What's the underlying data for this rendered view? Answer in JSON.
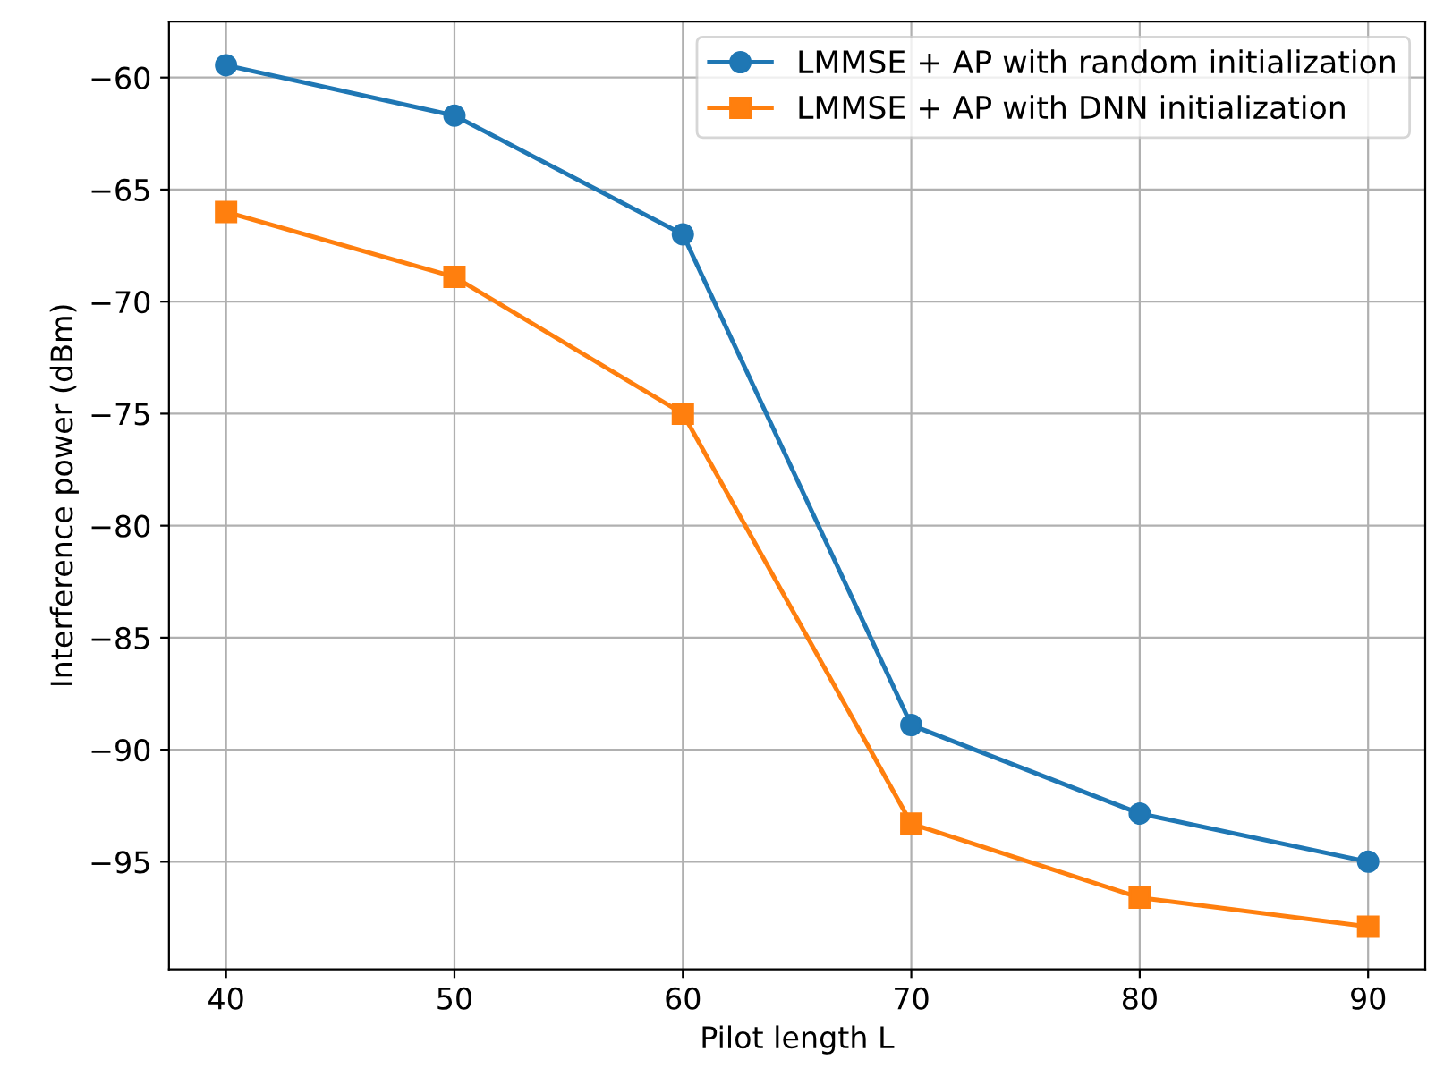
{
  "chart_data": {
    "type": "line",
    "xlabel": "Pilot length L",
    "ylabel": "Interference power (dBm)",
    "x": [
      40,
      50,
      60,
      70,
      80,
      90
    ],
    "series": [
      {
        "name": "LMMSE + AP with random initialization",
        "color": "#1f77b4",
        "marker": "circle",
        "values": [
          -59.45,
          -61.7,
          -67.0,
          -88.9,
          -92.85,
          -95.0
        ]
      },
      {
        "name": "LMMSE + AP with DNN initialization",
        "color": "#ff7f0e",
        "marker": "square",
        "values": [
          -66.0,
          -68.9,
          -75.0,
          -93.3,
          -96.6,
          -97.9
        ]
      }
    ],
    "xlim": [
      37.5,
      92.5
    ],
    "xticks": [
      40,
      50,
      60,
      70,
      80,
      90
    ],
    "ylim": [
      -99.8,
      -57.5
    ],
    "yticks": [
      {
        "value": -60,
        "label": "−60"
      },
      {
        "value": -65,
        "label": "−65"
      },
      {
        "value": -70,
        "label": "−70"
      },
      {
        "value": -75,
        "label": "−75"
      },
      {
        "value": -80,
        "label": "−80"
      },
      {
        "value": -85,
        "label": "−85"
      },
      {
        "value": -90,
        "label": "−90"
      },
      {
        "value": -95,
        "label": "−95"
      }
    ],
    "grid": true,
    "legend": "top right",
    "line_style": "solid"
  }
}
